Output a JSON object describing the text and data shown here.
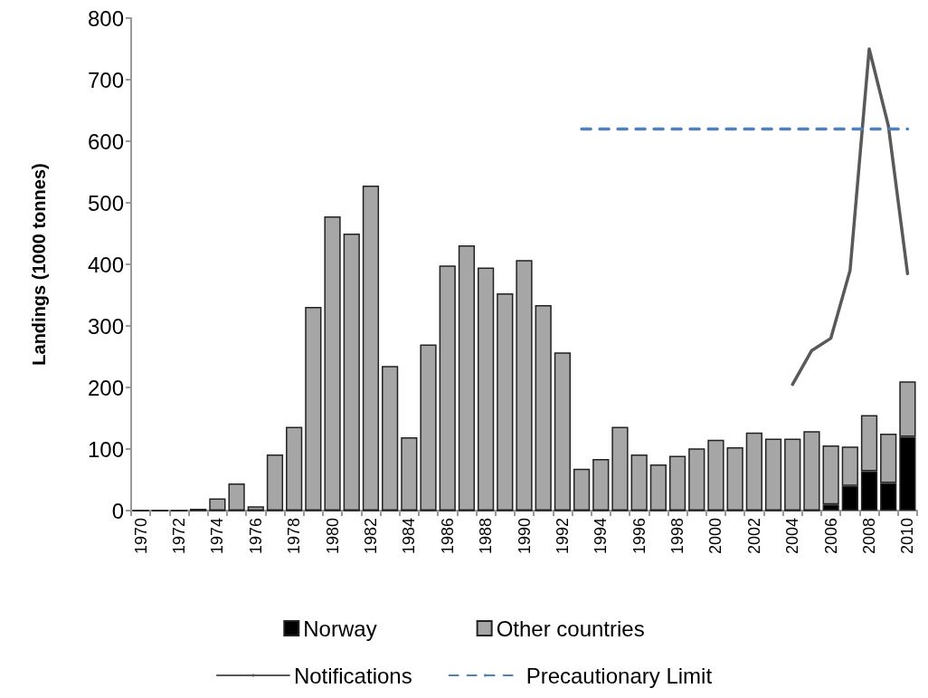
{
  "chart_data": {
    "type": "bar",
    "stacked": true,
    "ylabel": "Landings (1000 tonnes)",
    "categories": [
      "1970",
      null,
      "1972",
      null,
      "1974",
      null,
      "1976",
      null,
      "1978",
      null,
      "1980",
      null,
      "1982",
      null,
      "1984",
      null,
      "1986",
      null,
      "1988",
      null,
      "1990",
      null,
      "1992",
      null,
      "1994",
      null,
      "1996",
      null,
      "1998",
      null,
      "2000",
      null,
      "2002",
      null,
      "2004",
      null,
      "2006",
      null,
      "2008",
      null,
      "2010"
    ],
    "series": [
      {
        "name": "Norway",
        "color": "#000000",
        "values": [
          0,
          0,
          0,
          0,
          0,
          0,
          0,
          0,
          0,
          0,
          0,
          0,
          0,
          0,
          0,
          0,
          0,
          0,
          0,
          0,
          0,
          0,
          0,
          0,
          0,
          0,
          0,
          0,
          0,
          0,
          0,
          0,
          0,
          0,
          0,
          0,
          10,
          40,
          64,
          45,
          120
        ]
      },
      {
        "name": "Other countries",
        "color": "#a6a6a6",
        "values": [
          0,
          0,
          0,
          3,
          20,
          44,
          7,
          91,
          136,
          331,
          478,
          450,
          528,
          235,
          119,
          270,
          398,
          431,
          395,
          353,
          407,
          334,
          257,
          68,
          84,
          136,
          91,
          75,
          89,
          101,
          115,
          103,
          127,
          117,
          117,
          129,
          96,
          64,
          91,
          80,
          90
        ]
      },
      {
        "name": "Notifications",
        "type": "line",
        "color": "#595959",
        "line_style": "solid",
        "values": [
          null,
          null,
          null,
          null,
          null,
          null,
          null,
          null,
          null,
          null,
          null,
          null,
          null,
          null,
          null,
          null,
          null,
          null,
          null,
          null,
          null,
          null,
          null,
          null,
          null,
          null,
          null,
          null,
          null,
          null,
          null,
          null,
          null,
          null,
          205,
          260,
          280,
          390,
          750,
          625,
          385
        ]
      },
      {
        "name": "Precautionary Limit",
        "type": "line",
        "color": "#4f81bd",
        "line_style": "dashed",
        "values": [
          null,
          null,
          null,
          null,
          null,
          null,
          null,
          null,
          null,
          null,
          null,
          null,
          null,
          null,
          null,
          null,
          null,
          null,
          null,
          null,
          null,
          null,
          null,
          620,
          620,
          620,
          620,
          620,
          620,
          620,
          620,
          620,
          620,
          620,
          620,
          620,
          620,
          620,
          620,
          620,
          620
        ]
      }
    ],
    "ylim": [
      0,
      800
    ],
    "yticks": [
      0,
      100,
      200,
      300,
      400,
      500,
      600,
      700,
      800
    ],
    "grid": false,
    "legend": "bottom",
    "marker": "none"
  }
}
